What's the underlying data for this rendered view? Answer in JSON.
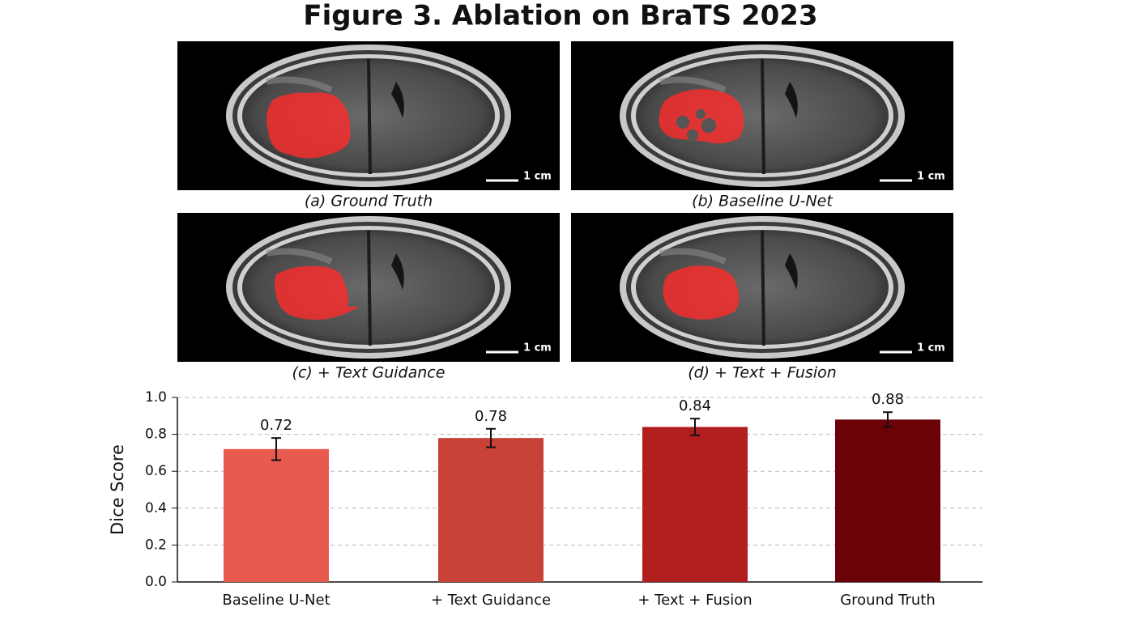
{
  "title": "Figure 3. Ablation on BraTS 2023",
  "panels": [
    {
      "caption": "(a) Ground Truth",
      "scale": "1 cm"
    },
    {
      "caption": "(b) Baseline U-Net",
      "scale": "1 cm"
    },
    {
      "caption": "(c) + Text Guidance",
      "scale": "1 cm"
    },
    {
      "caption": "(d) + Text + Fusion",
      "scale": "1 cm"
    }
  ],
  "chart_data": {
    "type": "bar",
    "ylabel": "Dice Score",
    "categories": [
      "Baseline U-Net",
      "+ Text Guidance",
      "+ Text + Fusion",
      "Ground Truth"
    ],
    "values": [
      0.72,
      0.78,
      0.84,
      0.88
    ],
    "errors": [
      0.06,
      0.05,
      0.045,
      0.04
    ],
    "colors": [
      "#e8594e",
      "#c84238",
      "#b01e1e",
      "#6b0208"
    ],
    "ylim": [
      0,
      1
    ],
    "yticks": [
      {
        "value": 0,
        "label": "0.0"
      },
      0.2,
      0.4,
      0.6,
      0.8,
      {
        "value": 1,
        "label": "1.0"
      }
    ],
    "grid": true
  }
}
